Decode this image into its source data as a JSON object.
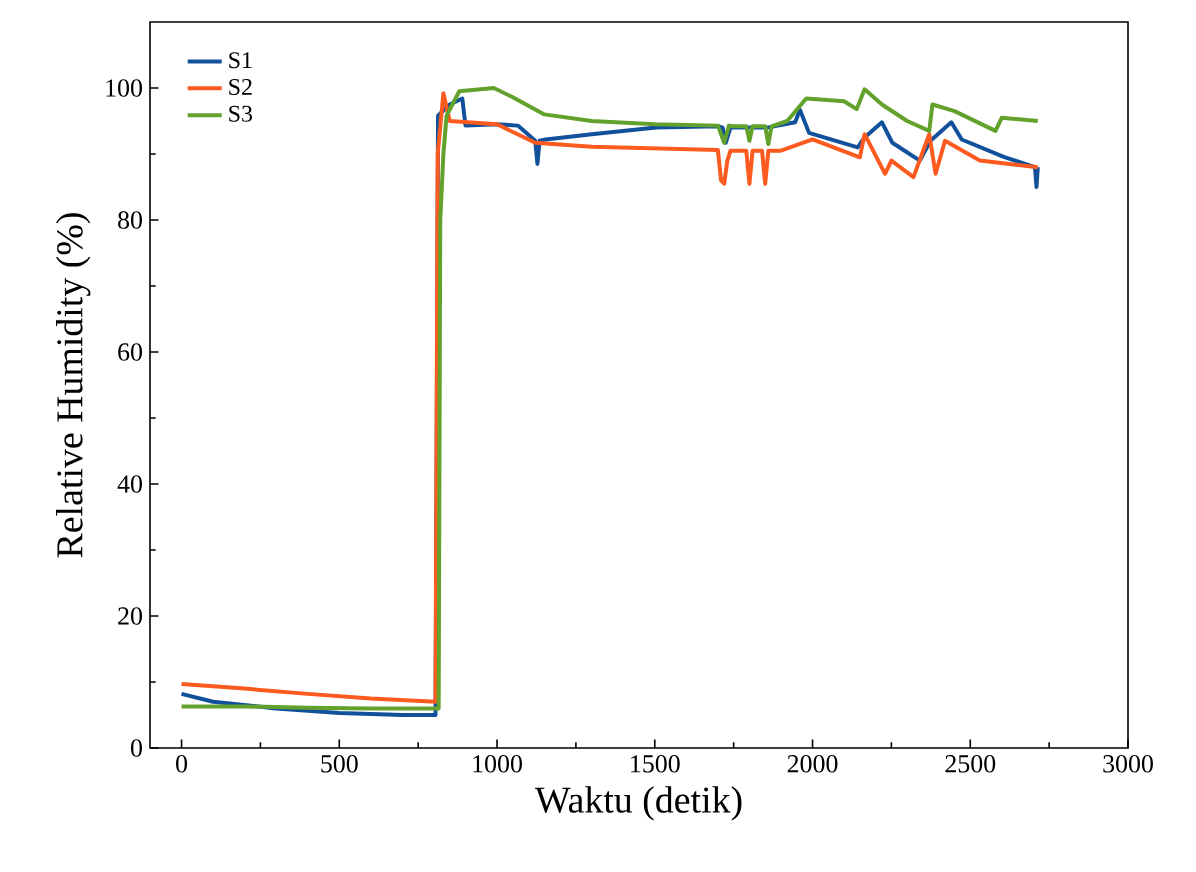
{
  "chart_data": {
    "type": "line",
    "xlabel": "Waktu (detik)",
    "ylabel": "Relative Humidity (%)",
    "xlim": [
      -100,
      3000
    ],
    "ylim": [
      0,
      110
    ],
    "xticks": [
      0,
      500,
      1000,
      1500,
      2000,
      2500,
      3000
    ],
    "yticks": [
      0,
      20,
      40,
      60,
      80,
      100
    ],
    "legend": "top left",
    "grid": false,
    "series": [
      {
        "name": "S1",
        "color": "#11519b",
        "x": [
          0,
          100,
          300,
          500,
          700,
          805,
          813,
          850,
          890,
          900,
          1000,
          1066,
          1121,
          1128,
          1135,
          1154,
          1300,
          1505,
          1703,
          1715,
          1725,
          1740,
          1857,
          1945,
          1960,
          1989,
          2143,
          2165,
          2220,
          2253,
          2340,
          2374,
          2440,
          2473,
          2604,
          2705,
          2710,
          2714
        ],
        "values": [
          8.2,
          7,
          6,
          5.3,
          5,
          5,
          95.8,
          97.5,
          98.4,
          94.3,
          94.5,
          94.3,
          92,
          88.5,
          92,
          92.2,
          93,
          94,
          94.2,
          94,
          91.7,
          94,
          94,
          94.8,
          96.7,
          93.2,
          91,
          92.5,
          94.8,
          91.7,
          89,
          92,
          94.8,
          92.2,
          89.6,
          88,
          85,
          88
        ]
      },
      {
        "name": "S2",
        "color": "#fc5a1e",
        "x": [
          0,
          200,
          400,
          600,
          805,
          812,
          830,
          850,
          1000,
          1121,
          1300,
          1700,
          1710,
          1720,
          1730,
          1740,
          1790,
          1800,
          1810,
          1840,
          1850,
          1860,
          1900,
          2000,
          2150,
          2165,
          2230,
          2250,
          2320,
          2370,
          2390,
          2420,
          2530,
          2714
        ],
        "values": [
          9.7,
          9,
          8.2,
          7.5,
          7,
          90,
          99.2,
          95,
          94.5,
          91.7,
          91.1,
          90.6,
          86,
          85.5,
          89,
          90.5,
          90.5,
          85.5,
          90.5,
          90.5,
          85.5,
          90.5,
          90.5,
          92.2,
          89.5,
          93,
          87,
          89,
          86.5,
          93,
          87,
          92,
          89,
          88
        ]
      },
      {
        "name": "S3",
        "color": "#62a22c",
        "x": [
          0,
          200,
          400,
          600,
          815,
          820,
          830,
          840,
          880,
          990,
          1050,
          1150,
          1300,
          1500,
          1700,
          1720,
          1735,
          1750,
          1790,
          1800,
          1810,
          1850,
          1860,
          1870,
          1920,
          1980,
          2100,
          2140,
          2165,
          2220,
          2300,
          2370,
          2380,
          2450,
          2580,
          2600,
          2714
        ],
        "values": [
          6.3,
          6.3,
          6.1,
          6,
          6,
          80,
          90,
          95.8,
          99.5,
          100,
          98.6,
          96,
          95,
          94.5,
          94.3,
          91.7,
          94.3,
          94.2,
          94.2,
          92,
          94.2,
          94.2,
          91.5,
          94.2,
          95,
          98.4,
          98,
          96.8,
          99.8,
          97.5,
          95,
          93.5,
          97.5,
          96.5,
          93.5,
          95.5,
          95
        ]
      }
    ]
  }
}
